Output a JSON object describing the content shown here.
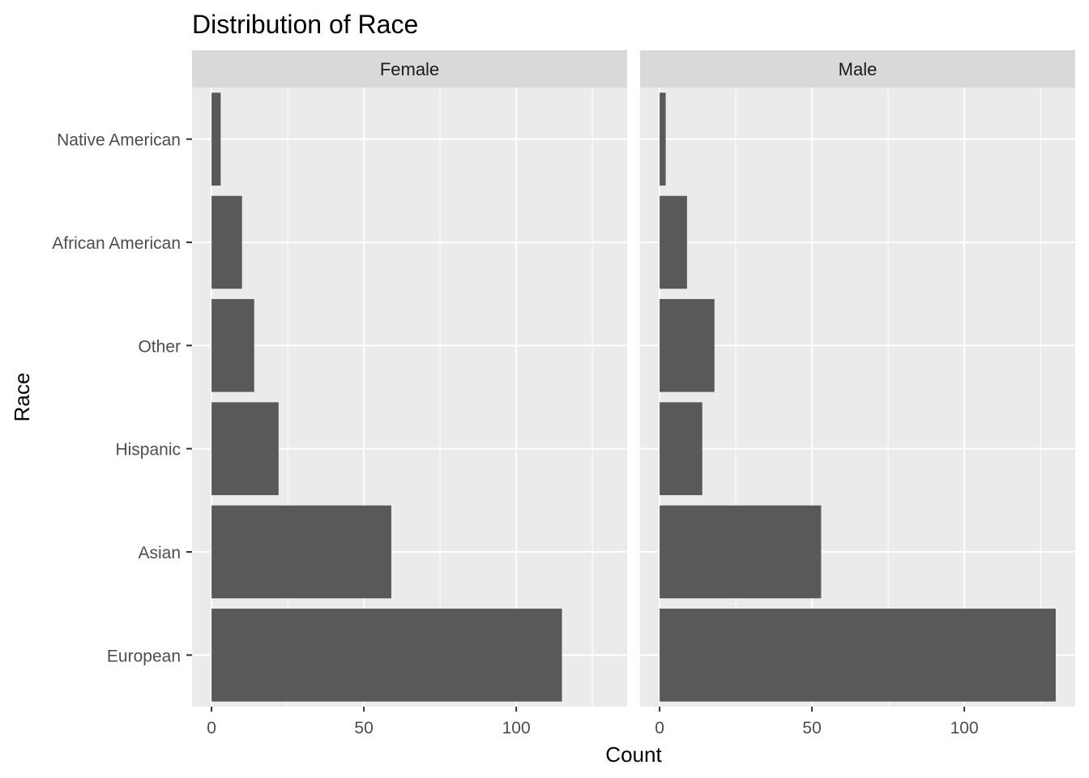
{
  "chart_data": {
    "type": "bar",
    "orientation": "horizontal",
    "title": "Distribution of Race",
    "xlabel": "Count",
    "ylabel": "Race",
    "categories": [
      "Native American",
      "African American",
      "Other",
      "Hispanic",
      "Asian",
      "European"
    ],
    "xlim": [
      -6.4,
      136.4
    ],
    "xticks": [
      0,
      50,
      100
    ],
    "grid": true,
    "legend": "none",
    "facets": [
      {
        "label": "Female",
        "values": [
          3,
          10,
          14,
          22,
          59,
          115
        ]
      },
      {
        "label": "Male",
        "values": [
          2,
          9,
          18,
          14,
          53,
          130
        ]
      }
    ],
    "colors": {
      "bar": "#595959",
      "panel": "#ebebeb",
      "strip": "#d9d9d9",
      "grid": "#ffffff"
    }
  }
}
